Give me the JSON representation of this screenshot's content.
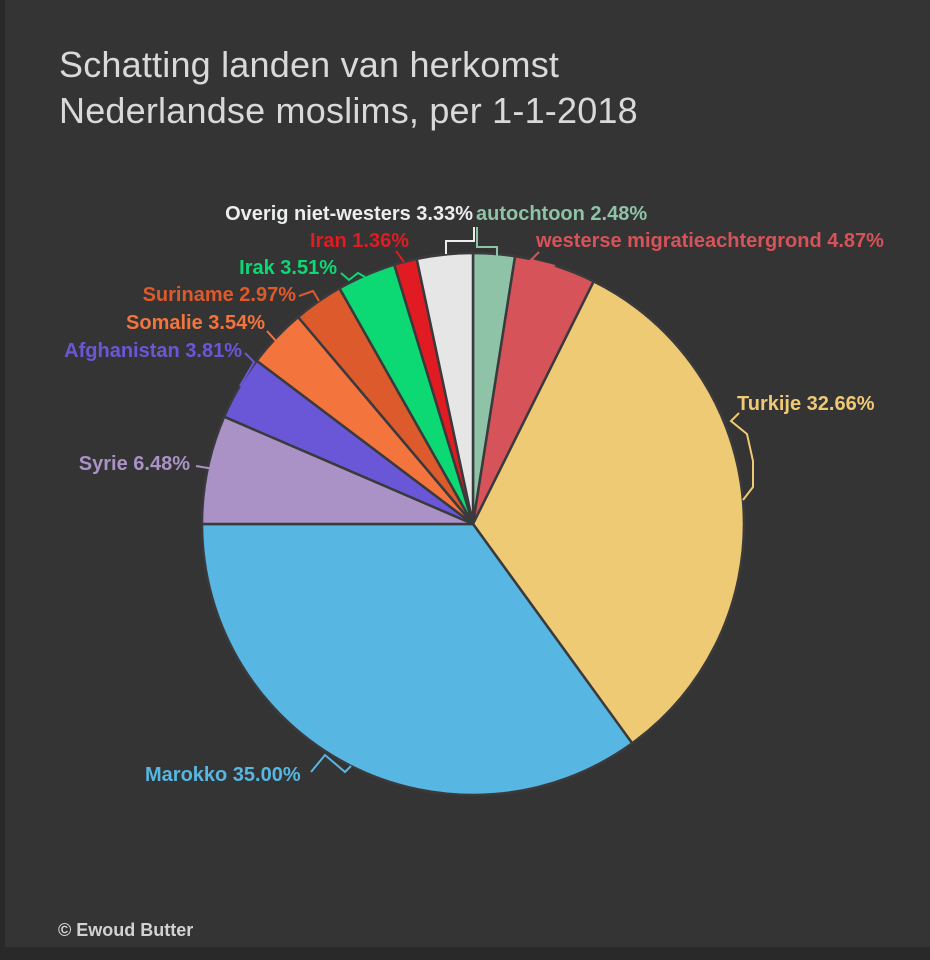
{
  "title": {
    "line1": "Schatting landen van herkomst",
    "line2": "Nederlandse moslims, per 1-1-2018"
  },
  "footer": {
    "credit": "© Ewoud Butter"
  },
  "theme": {
    "background": "#343434",
    "window_edge": "#292929",
    "title_color": "#d9d9d9",
    "credit_color": "#d2d2d2",
    "slice_stroke": "#3a3a3c"
  },
  "chart_data": {
    "type": "pie",
    "title": "Schatting landen van herkomst Nederlandse moslims, per 1-1-2018",
    "start_angle_deg": 0,
    "direction": "clockwise",
    "legend": "none (direct slice labels with colored leader lines)",
    "label_format": "{name} {value}%",
    "series": [
      {
        "name": "autochtoon",
        "value": 2.48,
        "color": "#8ec3a7"
      },
      {
        "name": "westerse migratieachtergrond",
        "value": 4.87,
        "color": "#d65359"
      },
      {
        "name": "Turkije",
        "value": 32.66,
        "color": "#eeca75"
      },
      {
        "name": "Marokko",
        "value": 35.0,
        "color": "#57b6e2"
      },
      {
        "name": "Syrie",
        "value": 6.48,
        "color": "#aa92c7"
      },
      {
        "name": "Afghanistan",
        "value": 3.81,
        "color": "#6a57d8"
      },
      {
        "name": "Somalie",
        "value": 3.54,
        "color": "#f4743e"
      },
      {
        "name": "Suriname",
        "value": 2.97,
        "color": "#dd5a2c"
      },
      {
        "name": "Irak",
        "value": 3.51,
        "color": "#0cd974"
      },
      {
        "name": "Iran",
        "value": 1.36,
        "color": "#e01b22"
      },
      {
        "name": "Overig niet-westers",
        "value": 3.33,
        "color": "#e6e6e6",
        "label_color": "#eceded"
      }
    ]
  }
}
